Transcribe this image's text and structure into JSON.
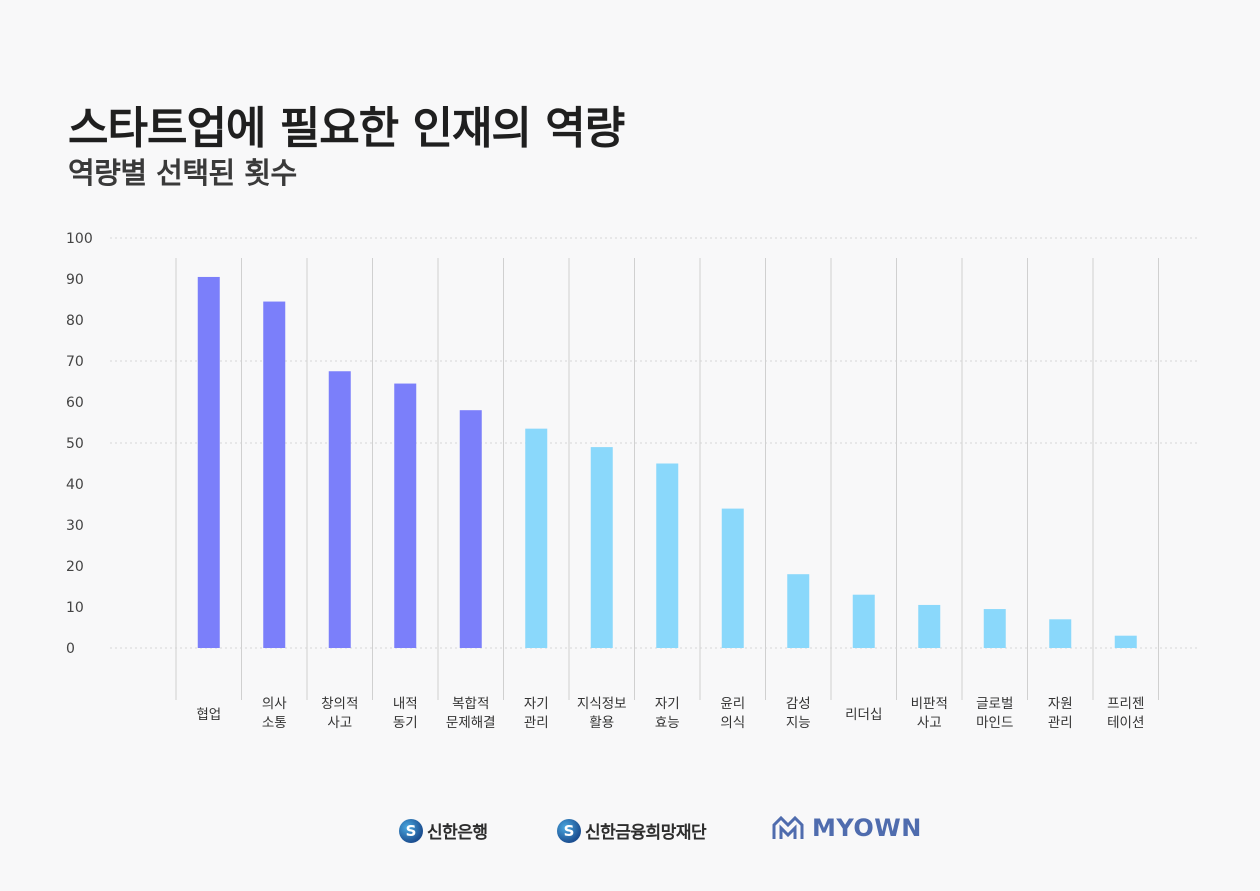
{
  "header": {
    "title": "스타트업에 필요한 인재의 역량",
    "subtitle": "역량별 선택된 횟수"
  },
  "chart_data": {
    "type": "bar",
    "title": "스타트업에 필요한 인재의 역량",
    "subtitle": "역량별 선택된 횟수",
    "categories": [
      [
        "협업"
      ],
      [
        "의사",
        "소통"
      ],
      [
        "창의적",
        "사고"
      ],
      [
        "내적",
        "동기"
      ],
      [
        "복합적",
        "문제해결"
      ],
      [
        "자기",
        "관리"
      ],
      [
        "지식정보",
        "활용"
      ],
      [
        "자기",
        "효능"
      ],
      [
        "윤리",
        "의식"
      ],
      [
        "감성",
        "지능"
      ],
      [
        "리더십"
      ],
      [
        "비판적",
        "사고"
      ],
      [
        "글로벌",
        "마인드"
      ],
      [
        "자원",
        "관리"
      ],
      [
        "프리젠",
        "테이션"
      ]
    ],
    "values": [
      90.5,
      84.5,
      67.5,
      64.5,
      58,
      53.5,
      49,
      45,
      34,
      18,
      13,
      10.5,
      9.5,
      7,
      3
    ],
    "ylim": [
      0,
      100
    ],
    "yticks": [
      0,
      10,
      20,
      30,
      40,
      50,
      60,
      70,
      80,
      90,
      100
    ],
    "xlabel": "",
    "ylabel": "",
    "colors": {
      "top5": "#7b7ffa",
      "rest": "#8ad8fb",
      "grid": "#d6d6d6",
      "separator": "#d0d0d0"
    },
    "highlight_count": 5,
    "grid": true
  },
  "footer": {
    "logos": [
      {
        "icon": "shinhan-logo-icon",
        "text": "신한은행"
      },
      {
        "icon": "shinhan-logo-icon",
        "text": "신한금융희망재단"
      },
      {
        "icon": "myown-logo-icon",
        "text": "MYOWN"
      }
    ]
  }
}
